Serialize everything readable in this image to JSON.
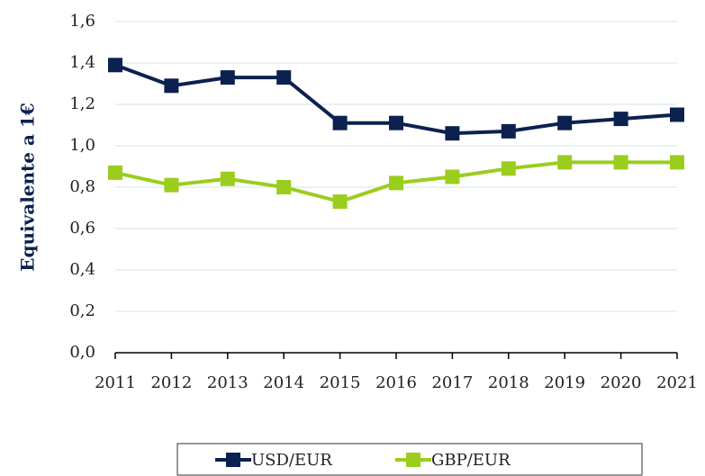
{
  "chart_data": {
    "type": "line",
    "y_label": "Equivalente a 1€",
    "categories": [
      "2011",
      "2012",
      "2013",
      "2014",
      "2015",
      "2016",
      "2017",
      "2018",
      "2019",
      "2020",
      "2021"
    ],
    "series": [
      {
        "name": "USD/EUR",
        "color": "#0c2150",
        "values": [
          1.39,
          1.29,
          1.33,
          1.33,
          1.11,
          1.11,
          1.06,
          1.07,
          1.11,
          1.13,
          1.15
        ]
      },
      {
        "name": "GBP/EUR",
        "color": "#9acd1e",
        "values": [
          0.87,
          0.81,
          0.84,
          0.8,
          0.73,
          0.82,
          0.85,
          0.89,
          0.92,
          0.92,
          0.92
        ]
      }
    ],
    "ylim": [
      0,
      1.6
    ],
    "yticks": [
      {
        "value": 0,
        "label": "0,0"
      },
      {
        "value": 0.2,
        "label": "0,2"
      },
      {
        "value": 0.4,
        "label": "0,4"
      },
      {
        "value": 0.6,
        "label": "0,6"
      },
      {
        "value": 0.8,
        "label": "0,8"
      },
      {
        "value": 1.0,
        "label": "1,0"
      },
      {
        "value": 1.2,
        "label": "1,2"
      },
      {
        "value": 1.4,
        "label": "1,4"
      },
      {
        "value": 1.6,
        "label": "1,6"
      }
    ],
    "grid": true
  }
}
